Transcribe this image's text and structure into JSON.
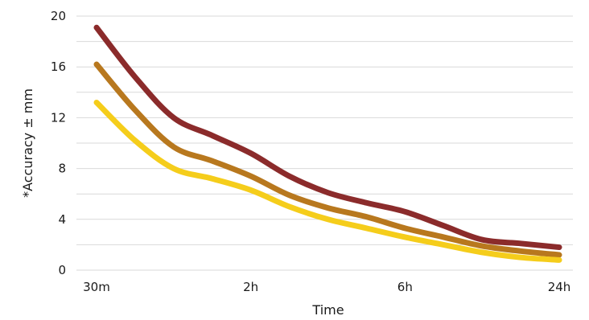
{
  "chart_data": {
    "type": "line",
    "title": "",
    "xlabel": "Time",
    "ylabel": "*Accuracy ± mm",
    "ylim": [
      0,
      20
    ],
    "yticks": [
      "0",
      "4",
      "8",
      "12",
      "16",
      "20"
    ],
    "x_tick_labels": [
      "30m",
      "2h",
      "6h",
      "24h"
    ],
    "grid": true,
    "legend": "none",
    "x": [
      0,
      0.5,
      1,
      1.5,
      2,
      2.5,
      3,
      3.5,
      4,
      4.5,
      5,
      5.5,
      6
    ],
    "series": [
      {
        "color": "#8b2b2b",
        "values": [
          19.1,
          15.2,
          12.0,
          10.6,
          9.2,
          7.4,
          6.1,
          5.3,
          4.6,
          3.5,
          2.4,
          2.1,
          1.8
        ]
      },
      {
        "color": "#b8781e",
        "values": [
          16.2,
          12.6,
          9.7,
          8.6,
          7.4,
          5.9,
          4.9,
          4.2,
          3.3,
          2.6,
          1.9,
          1.5,
          1.2
        ]
      },
      {
        "color": "#f5cd1b",
        "values": [
          13.2,
          10.2,
          8.0,
          7.2,
          6.3,
          5.0,
          4.0,
          3.3,
          2.6,
          2.0,
          1.4,
          1.0,
          0.8
        ]
      }
    ]
  }
}
